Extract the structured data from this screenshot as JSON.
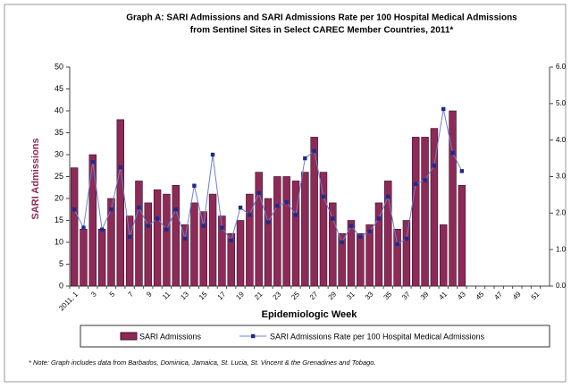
{
  "chart_data": {
    "type": "bar_line",
    "title": "Graph A: SARI Admissions and SARI Admissions Rate per 100 Hospital Medical Admissions",
    "subtitle": "from Sentinel Sites in Select CAREC Member Countries, 2011*",
    "x_label": "Epidemiologic Week",
    "y_label": "SARI Admissions",
    "note": "* Note: Graph includes data from Barbados, Dominica, Jamaica, St. Lucia, St. Vincent & the Grenadines and Tobago.",
    "categories": [
      "2011, 1",
      null,
      "3",
      null,
      "5",
      null,
      "7",
      null,
      "9",
      null,
      "11",
      null,
      "13",
      null,
      "15",
      null,
      "17",
      null,
      "19",
      null,
      "21",
      null,
      "23",
      null,
      "25",
      null,
      "27",
      null,
      "29",
      null,
      "31",
      null,
      "33",
      null,
      "35",
      null,
      "37",
      null,
      "39",
      null,
      "41",
      null,
      "43",
      null,
      "45",
      null,
      "47",
      null,
      "49",
      null,
      "51",
      null
    ],
    "series": [
      {
        "name": "SARI Admissions",
        "color": "#8e2a58",
        "values": [
          27,
          13,
          30,
          13,
          20,
          38,
          16,
          24,
          19,
          22,
          21,
          23,
          14,
          19,
          17,
          21,
          16,
          12,
          15,
          21,
          26,
          20,
          25,
          25,
          24,
          26,
          34,
          26,
          19,
          12,
          15,
          12,
          14,
          19,
          24,
          13,
          15,
          34,
          34,
          36,
          14,
          40,
          23,
          null,
          null,
          null,
          null,
          null,
          null,
          null,
          null,
          null
        ]
      },
      {
        "name": "SARI Admissions Rate per 100 Hospital Medical Admissions",
        "color": "#1c2a8c",
        "axis": "y2",
        "values": [
          2.1,
          1.6,
          3.4,
          1.55,
          2.1,
          3.25,
          1.35,
          2.15,
          1.65,
          1.85,
          1.55,
          2.1,
          1.3,
          2.75,
          1.65,
          3.6,
          1.6,
          1.25,
          2.15,
          1.95,
          2.55,
          1.75,
          2.2,
          2.3,
          1.95,
          3.5,
          3.7,
          2.45,
          1.85,
          1.2,
          1.65,
          1.35,
          1.5,
          1.85,
          2.45,
          1.15,
          1.3,
          2.8,
          2.9,
          3.3,
          4.85,
          3.65,
          3.15,
          null,
          null,
          null,
          null,
          null,
          null,
          null,
          null,
          null
        ]
      }
    ],
    "ylim": [
      0,
      50
    ],
    "yticks": [
      0,
      5,
      10,
      15,
      20,
      25,
      30,
      35,
      40,
      45,
      50
    ],
    "y2lim": [
      0,
      6
    ],
    "y2ticks": [
      {
        "value": 0,
        "label": "0.0"
      },
      {
        "value": 1,
        "label": "1.0"
      },
      {
        "value": 2,
        "label": "2.0"
      },
      {
        "value": 3,
        "label": "3.0"
      },
      {
        "value": 4,
        "label": "4.0"
      },
      {
        "value": 5,
        "label": "5.0"
      },
      {
        "value": 6,
        "label": "6.0"
      }
    ],
    "legend": "bottom"
  }
}
